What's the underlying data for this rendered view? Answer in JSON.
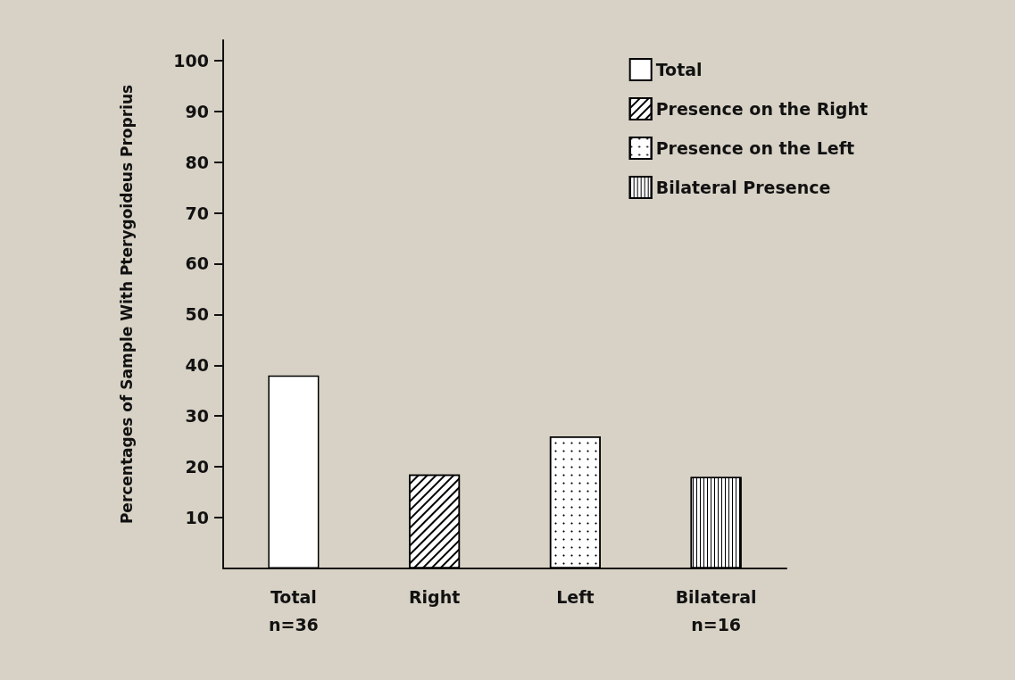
{
  "chart_data": {
    "type": "bar",
    "ylabel": "Percentages of Sample With Pterygoideus Proprius",
    "categories": [
      "Total",
      "Right",
      "Left",
      "Bilateral"
    ],
    "series": [
      {
        "name": "Total",
        "color": "#ffffff",
        "values": [
          38,
          null,
          null,
          null
        ]
      },
      {
        "name": "Presence on the Right",
        "color": "#ffffff",
        "values": [
          null,
          18.5,
          null,
          null
        ]
      },
      {
        "name": "Presence on the Left",
        "color": "#ffffff",
        "values": [
          null,
          null,
          26,
          null
        ]
      },
      {
        "name": "Bilateral Presence",
        "color": "#ffffff",
        "values": [
          null,
          null,
          null,
          18
        ]
      }
    ],
    "stacked": true,
    "ylim": [
      0,
      104
    ],
    "yticks": [
      10,
      20,
      30,
      40,
      50,
      60,
      70,
      80,
      90,
      100
    ],
    "grid": false,
    "legend": "top right",
    "annotations": [
      "n=36",
      "n=16"
    ]
  }
}
